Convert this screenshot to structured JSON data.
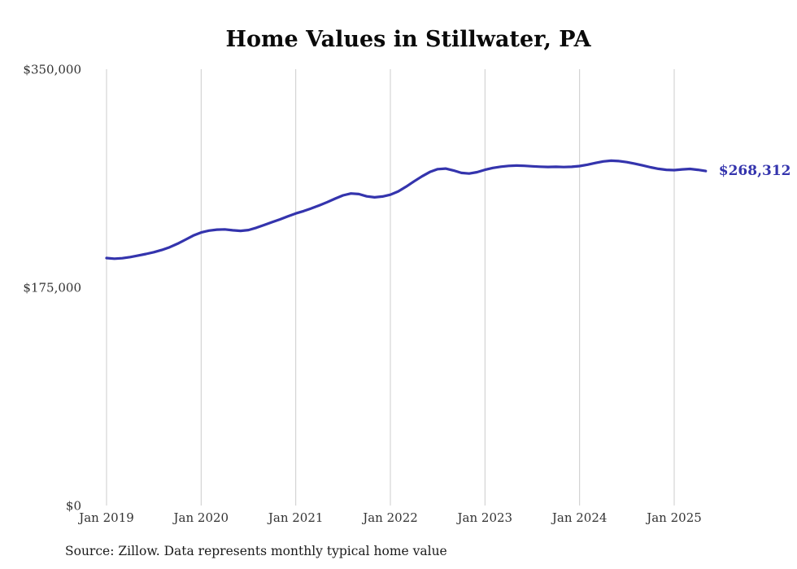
{
  "chart_data": {
    "type": "line",
    "title": "Home Values in Stillwater, PA",
    "source": "Source: Zillow. Data represents monthly typical home value",
    "xlabel": "",
    "ylabel": "",
    "ylim": [
      0,
      350000
    ],
    "grid": "vertical-only",
    "legend": "none",
    "colors": {
      "line": "#3434ad",
      "gridline": "#cccccc",
      "tick_text": "#333333",
      "title_text": "#0a0a0a"
    },
    "yticks": [
      {
        "value": 0,
        "label": "$0"
      },
      {
        "value": 175000,
        "label": "$175,000"
      },
      {
        "value": 350000,
        "label": "$350,000"
      }
    ],
    "xticks": [
      {
        "month": 0,
        "label": "Jan 2019"
      },
      {
        "month": 12,
        "label": "Jan 2020"
      },
      {
        "month": 24,
        "label": "Jan 2021"
      },
      {
        "month": 36,
        "label": "Jan 2022"
      },
      {
        "month": 48,
        "label": "Jan 2023"
      },
      {
        "month": 60,
        "label": "Jan 2024"
      },
      {
        "month": 72,
        "label": "Jan 2025"
      }
    ],
    "series": [
      {
        "name": "Typical home value",
        "color": "#3434ad",
        "start": "2019-01",
        "frequency": "monthly",
        "end_value": 268312,
        "end_label": "$268,312",
        "values": [
          198500,
          198000,
          198400,
          199300,
          200500,
          201800,
          203200,
          205000,
          207200,
          210000,
          213200,
          216500,
          219000,
          220500,
          221300,
          221500,
          220800,
          220300,
          221000,
          222800,
          225000,
          227300,
          229500,
          232000,
          234300,
          236200,
          238400,
          240800,
          243400,
          246200,
          248800,
          250300,
          249800,
          248000,
          247200,
          247900,
          249300,
          252000,
          255800,
          260000,
          264000,
          267500,
          269800,
          270300,
          268800,
          266800,
          266300,
          267400,
          269300,
          270800,
          271800,
          272400,
          272700,
          272500,
          272100,
          271800,
          271600,
          271700,
          271500,
          271700,
          272300,
          273400,
          274800,
          276000,
          276600,
          276300,
          275400,
          274200,
          272800,
          271300,
          270100,
          269300,
          269000,
          269600,
          270000,
          269300,
          268312
        ]
      }
    ]
  }
}
